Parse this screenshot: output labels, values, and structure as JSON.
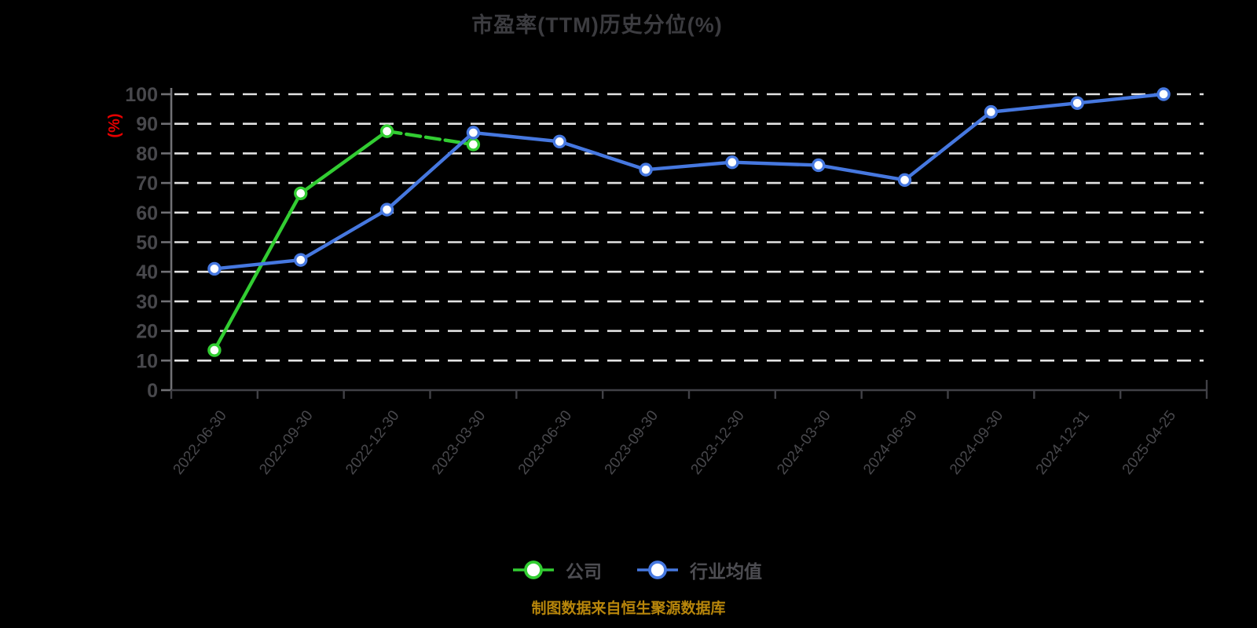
{
  "title": {
    "text": "市盈率(TTM)历史分位(%)"
  },
  "footer": {
    "text": "制图数据来自恒生聚源数据库"
  },
  "legend": {
    "items": [
      {
        "key": "company",
        "label": "公司",
        "color": "#32cd32"
      },
      {
        "key": "industry",
        "label": "行业均值",
        "color": "#4678e0"
      }
    ]
  },
  "colors": {
    "background": "#000000",
    "title_text": "#3c3c40",
    "axis_label_text": "#48484c",
    "y_axis_line": "#707074",
    "x_axis_line": "#414146",
    "gridline": "#e2e2e2",
    "unit_label_red": "#e60000",
    "footer_gold": "#b8860b",
    "legend_text": "#4d4d52",
    "company_green": "#32cd32",
    "industry_blue": "#4678e0",
    "marker_fill": "#ffffff"
  },
  "chart_data": {
    "type": "line",
    "title": "市盈率(TTM)历史分位(%)",
    "ylabel": "(%)",
    "ylim": [
      0,
      100
    ],
    "yticks": [
      0,
      10,
      20,
      30,
      40,
      50,
      60,
      70,
      80,
      90,
      100
    ],
    "grid": "horizontal-dashed",
    "legend_position": "bottom",
    "categories": [
      "2022-06-30",
      "2022-09-30",
      "2022-12-30",
      "2023-03-30",
      "2023-06-30",
      "2023-09-30",
      "2023-12-30",
      "2024-03-30",
      "2024-06-30",
      "2024-09-30",
      "2024-12-31",
      "2025-04-25"
    ],
    "series": [
      {
        "key": "company",
        "name": "公司",
        "color": "#32cd32",
        "last_segment_dashed": true,
        "values": [
          13.5,
          66.5,
          87.5,
          83,
          null,
          null,
          null,
          null,
          null,
          null,
          null,
          null
        ]
      },
      {
        "key": "industry",
        "name": "行业均值",
        "color": "#4678e0",
        "values": [
          41,
          44,
          61,
          87,
          84,
          74.5,
          77,
          76,
          71,
          94,
          97,
          100
        ]
      }
    ]
  }
}
